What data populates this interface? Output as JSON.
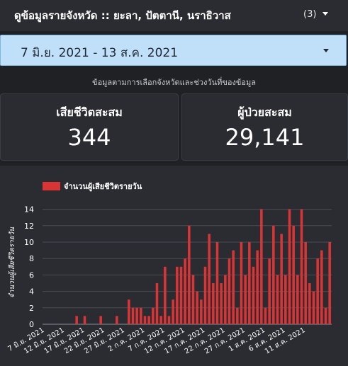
{
  "header": {
    "title": "ดูข้อมูลรายจังหวัด :: ยะลา, ปัตตานี, นราธิวาส",
    "selected_count": "(3)"
  },
  "date_filter": {
    "label": "7 มิ.ย. 2021 - 13 ส.ค. 2021"
  },
  "subtitle": "ข้อมูลตามการเลือกจังหวัดและช่วงวันที่ของข้อมูล",
  "cards": {
    "deaths": {
      "title": "เสียชีวิตสะสม",
      "value": "344"
    },
    "patients": {
      "title": "ผู้ป่วยสะสม",
      "value": "29,141"
    }
  },
  "colors": {
    "bar": "#d93536",
    "panel": "#2a2c32",
    "grid": "#4a4d55",
    "accent": "#bfe0f8"
  },
  "chart_data": {
    "type": "bar",
    "legend": "จำนวนผู้เสียชีวิตรายวัน",
    "legend_position": "top-left",
    "ylabel": "จำนวนผู้เสียชีวิตรายวัน",
    "xlabel": "",
    "grid": true,
    "ylim": [
      0,
      15
    ],
    "yticks": [
      0,
      2,
      4,
      6,
      8,
      10,
      12,
      14
    ],
    "x_tick_labels": [
      "7 มิ.ย. 2021",
      "12 มิ.ย. 2021",
      "17 มิ.ย. 2021",
      "22 มิ.ย. 2021",
      "27 มิ.ย. 2021",
      "2 ก.ค. 2021",
      "7 ก.ค. 2021",
      "12 ก.ค. 2021",
      "17 ก.ค. 2021",
      "22 ก.ค. 2021",
      "27 ก.ค. 2021",
      "1 ส.ค. 2021",
      "6 ส.ค. 2021",
      "11 ส.ค. 2021"
    ],
    "series": [
      {
        "name": "จำนวนผู้เสียชีวิตรายวัน",
        "values": [
          0,
          0,
          0,
          0,
          0,
          0,
          0,
          0,
          1,
          0,
          1,
          0,
          0,
          0,
          1,
          0,
          0,
          0,
          1,
          0,
          0,
          3,
          2,
          2,
          2,
          1,
          1,
          2,
          5,
          1,
          7,
          1,
          3,
          7,
          7,
          8,
          12,
          6,
          4,
          3,
          7,
          11,
          5,
          10,
          5,
          6,
          8,
          9,
          2,
          10,
          6,
          10,
          7,
          9,
          14,
          2,
          8,
          12,
          6,
          11,
          6,
          14,
          12,
          6,
          14,
          10,
          5,
          4,
          8,
          9,
          2,
          10
        ]
      }
    ]
  }
}
